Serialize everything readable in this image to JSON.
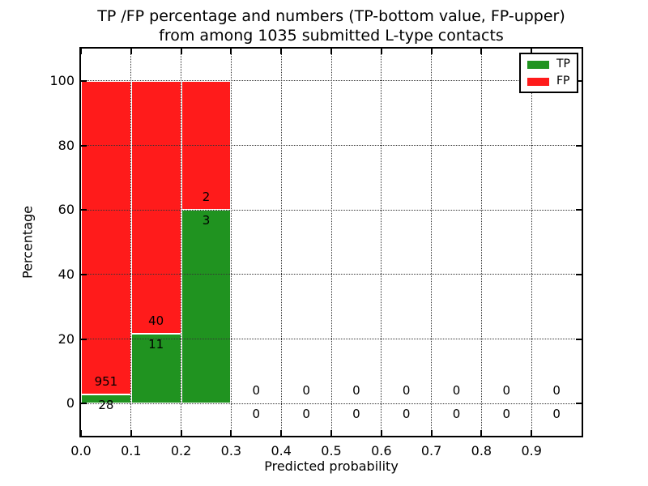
{
  "chart_data": {
    "type": "bar",
    "stacked": true,
    "title_line1": "TP /FP percentage and numbers (TP-bottom value, FP-upper)",
    "title_line2": "from among 1035 submitted L-type contacts",
    "xlabel": "Predicted probability",
    "ylabel": "Percentage",
    "xlim": [
      0.0,
      1.0
    ],
    "ylim": [
      -10,
      110
    ],
    "x_tick_values": [
      0.0,
      0.1,
      0.2,
      0.3,
      0.4,
      0.5,
      0.6,
      0.7,
      0.8,
      0.9
    ],
    "x_tick_labels": [
      "0.0",
      "0.1",
      "0.2",
      "0.3",
      "0.4",
      "0.5",
      "0.6",
      "0.7",
      "0.8",
      "0.9"
    ],
    "y_tick_values": [
      0,
      20,
      40,
      60,
      80,
      100
    ],
    "y_tick_labels": [
      "0",
      "20",
      "40",
      "60",
      "80",
      "100"
    ],
    "grid": true,
    "grid_style": "dotted",
    "colors": {
      "tp": "#209320",
      "fp": "#ff1b1b",
      "grid": "#333333",
      "spine": "#000000",
      "background": "#ffffff",
      "text": "#000000"
    },
    "legend": {
      "position": "upper right",
      "entries": [
        {
          "label": "TP",
          "color": "#209320"
        },
        {
          "label": "FP",
          "color": "#ff1b1b"
        }
      ]
    },
    "bins": [
      {
        "x_start": 0.0,
        "x_end": 0.1,
        "tp_count": 28,
        "fp_count": 951,
        "tp_pct": 2.86,
        "fp_pct": 97.14
      },
      {
        "x_start": 0.1,
        "x_end": 0.2,
        "tp_count": 11,
        "fp_count": 40,
        "tp_pct": 21.57,
        "fp_pct": 78.43
      },
      {
        "x_start": 0.2,
        "x_end": 0.3,
        "tp_count": 3,
        "fp_count": 2,
        "tp_pct": 60.0,
        "fp_pct": 40.0
      },
      {
        "x_start": 0.3,
        "x_end": 0.4,
        "tp_count": 0,
        "fp_count": 0,
        "tp_pct": 0,
        "fp_pct": 0
      },
      {
        "x_start": 0.4,
        "x_end": 0.5,
        "tp_count": 0,
        "fp_count": 0,
        "tp_pct": 0,
        "fp_pct": 0
      },
      {
        "x_start": 0.5,
        "x_end": 0.6,
        "tp_count": 0,
        "fp_count": 0,
        "tp_pct": 0,
        "fp_pct": 0
      },
      {
        "x_start": 0.6,
        "x_end": 0.7,
        "tp_count": 0,
        "fp_count": 0,
        "tp_pct": 0,
        "fp_pct": 0
      },
      {
        "x_start": 0.7,
        "x_end": 0.8,
        "tp_count": 0,
        "fp_count": 0,
        "tp_pct": 0,
        "fp_pct": 0
      },
      {
        "x_start": 0.8,
        "x_end": 0.9,
        "tp_count": 0,
        "fp_count": 0,
        "tp_pct": 0,
        "fp_pct": 0
      },
      {
        "x_start": 0.9,
        "x_end": 1.0,
        "tp_count": 0,
        "fp_count": 0,
        "tp_pct": 0,
        "fp_pct": 0
      }
    ]
  }
}
